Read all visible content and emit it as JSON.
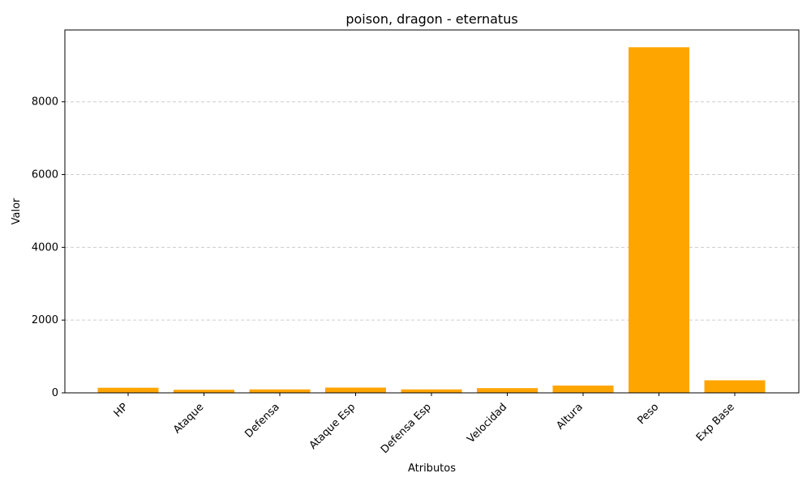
{
  "chart_data": {
    "type": "bar",
    "title": "poison, dragon - eternatus",
    "xlabel": "Atributos",
    "ylabel": "Valor",
    "categories": [
      "HP",
      "Ataque",
      "Defensa",
      "Ataque Esp",
      "Defensa Esp",
      "Velocidad",
      "Altura",
      "Peso",
      "Exp Base"
    ],
    "values": [
      140,
      85,
      95,
      145,
      95,
      130,
      200,
      9500,
      345
    ],
    "ylim": [
      0,
      9975
    ],
    "yticks": [
      0,
      2000,
      4000,
      6000,
      8000
    ],
    "ytick_labels": [
      "0",
      "2000",
      "4000",
      "6000",
      "8000"
    ],
    "bar_color": "#ffa500",
    "grid": {
      "y": true,
      "style": "dashed",
      "color": "#cccccc"
    }
  }
}
